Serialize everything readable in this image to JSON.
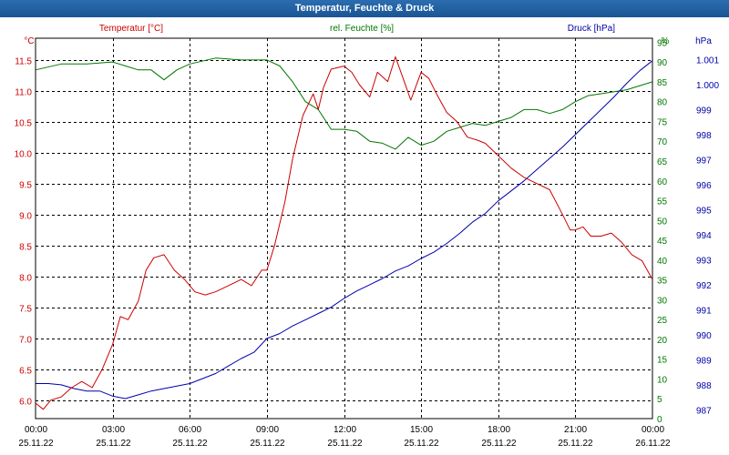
{
  "window": {
    "title": "Temperatur, Feuchte & Druck"
  },
  "chart_data": {
    "type": "line",
    "title": "Temperatur, Feuchte & Druck",
    "grid": true,
    "colors": {
      "temperature": "#cc0000",
      "humidity": "#007700",
      "pressure": "#0000aa",
      "grid": "#000000"
    },
    "x_ticks": [
      {
        "time": "00:00",
        "date": "25.11.22"
      },
      {
        "time": "03:00",
        "date": "25.11.22"
      },
      {
        "time": "06:00",
        "date": "25.11.22"
      },
      {
        "time": "09:00",
        "date": "25.11.22"
      },
      {
        "time": "12:00",
        "date": "25.11.22"
      },
      {
        "time": "15:00",
        "date": "25.11.22"
      },
      {
        "time": "18:00",
        "date": "25.11.22"
      },
      {
        "time": "21:00",
        "date": "25.11.22"
      },
      {
        "time": "00:00",
        "date": "26.11.22"
      }
    ],
    "xlim": [
      0,
      24
    ],
    "axes": {
      "temperature": {
        "label": "Temperatur [°C]",
        "unit": "°C",
        "ylim": [
          5.7,
          11.85
        ],
        "ticks": [
          "6.0",
          "6.5",
          "7.0",
          "7.5",
          "8.0",
          "8.5",
          "9.0",
          "9.5",
          "10.0",
          "10.5",
          "11.0",
          "11.5"
        ]
      },
      "humidity": {
        "label": "rel. Feuchte [%]",
        "unit": "%",
        "ylim": [
          0,
          96
        ],
        "ticks": [
          "0",
          "5",
          "10",
          "15",
          "20",
          "25",
          "30",
          "35",
          "40",
          "45",
          "50",
          "55",
          "60",
          "65",
          "70",
          "75",
          "80",
          "85",
          "90",
          "95"
        ]
      },
      "pressure": {
        "label": "Druck [hPa]",
        "unit": "hPa",
        "ylim": [
          986.65,
          1001.85
        ],
        "ticks": [
          "987",
          "988",
          "989",
          "990",
          "991",
          "992",
          "993",
          "994",
          "995",
          "996",
          "997",
          "998",
          "999",
          "1.000",
          "1.001"
        ]
      }
    },
    "series": [
      {
        "name": "Temperatur [°C]",
        "axis": "temperature",
        "x": [
          0,
          0.3,
          0.6,
          1,
          1.4,
          1.8,
          2.2,
          2.6,
          3,
          3.3,
          3.6,
          4,
          4.3,
          4.6,
          5,
          5.4,
          5.8,
          6.2,
          6.6,
          7,
          7.5,
          8,
          8.4,
          8.8,
          9,
          9.3,
          9.7,
          10,
          10.4,
          10.8,
          11,
          11.2,
          11.5,
          12,
          12.3,
          12.6,
          13,
          13.3,
          13.7,
          14,
          14.3,
          14.6,
          15,
          15.3,
          15.6,
          16,
          16.4,
          16.8,
          17.2,
          17.5,
          18,
          18.5,
          19,
          19.5,
          20,
          20.5,
          20.8,
          21,
          21.3,
          21.6,
          22,
          22.4,
          22.8,
          23.2,
          23.6,
          24
        ],
        "values": [
          5.95,
          5.85,
          6.0,
          6.05,
          6.2,
          6.3,
          6.2,
          6.5,
          6.9,
          7.35,
          7.3,
          7.6,
          8.1,
          8.3,
          8.35,
          8.1,
          7.95,
          7.75,
          7.7,
          7.75,
          7.85,
          7.95,
          7.85,
          8.1,
          8.1,
          8.5,
          9.2,
          9.9,
          10.6,
          10.95,
          10.7,
          11.05,
          11.35,
          11.4,
          11.3,
          11.1,
          10.9,
          11.3,
          11.15,
          11.55,
          11.2,
          10.85,
          11.3,
          11.2,
          10.95,
          10.65,
          10.5,
          10.25,
          10.2,
          10.15,
          9.95,
          9.75,
          9.6,
          9.5,
          9.4,
          9.0,
          8.75,
          8.75,
          8.8,
          8.65,
          8.65,
          8.7,
          8.55,
          8.35,
          8.25,
          7.95
        ]
      },
      {
        "name": "rel. Feuchte [%]",
        "axis": "humidity",
        "x": [
          0,
          1,
          2,
          3,
          3.5,
          4,
          4.5,
          5,
          5.5,
          6,
          7,
          8,
          9,
          9.5,
          10,
          10.5,
          11,
          11.5,
          12,
          12.5,
          13,
          13.5,
          14,
          14.5,
          15,
          15.5,
          16,
          16.5,
          17,
          17.5,
          18,
          18.5,
          19,
          19.5,
          20,
          20.5,
          21,
          21.5,
          22,
          23,
          24
        ],
        "values": [
          88,
          89.5,
          89.5,
          90,
          89,
          88,
          88,
          85.5,
          88,
          89.5,
          91,
          90.5,
          90.5,
          89,
          85,
          80,
          78,
          73,
          73,
          72.5,
          70,
          69.5,
          68,
          71,
          69,
          70,
          72.5,
          73.5,
          74.5,
          74,
          75,
          76,
          78,
          78,
          77,
          78,
          80,
          81.5,
          82,
          83,
          85
        ]
      },
      {
        "name": "Druck [hPa]",
        "axis": "pressure",
        "x": [
          0,
          0.5,
          1,
          1.5,
          2,
          2.5,
          3,
          3.5,
          4,
          4.5,
          5,
          5.5,
          6,
          6.5,
          7,
          7.5,
          8,
          8.5,
          9,
          9.5,
          10,
          10.5,
          11,
          11.5,
          12,
          12.5,
          13,
          13.5,
          14,
          14.5,
          15,
          15.5,
          16,
          16.5,
          17,
          17.5,
          18,
          18.5,
          19,
          19.5,
          20,
          20.5,
          21,
          21.5,
          22,
          22.5,
          23,
          23.5,
          24
        ],
        "values": [
          988.05,
          988.05,
          988.0,
          987.85,
          987.75,
          987.75,
          987.55,
          987.45,
          987.6,
          987.75,
          987.85,
          987.95,
          988.05,
          988.25,
          988.45,
          988.75,
          989.05,
          989.3,
          989.85,
          990.05,
          990.35,
          990.6,
          990.85,
          991.1,
          991.45,
          991.75,
          992.0,
          992.25,
          992.55,
          992.75,
          993.05,
          993.3,
          993.65,
          994.05,
          994.5,
          994.85,
          995.35,
          995.75,
          996.15,
          996.6,
          997.05,
          997.5,
          998.0,
          998.5,
          999.0,
          999.5,
          1000.05,
          1000.55,
          1000.95
        ]
      }
    ]
  }
}
